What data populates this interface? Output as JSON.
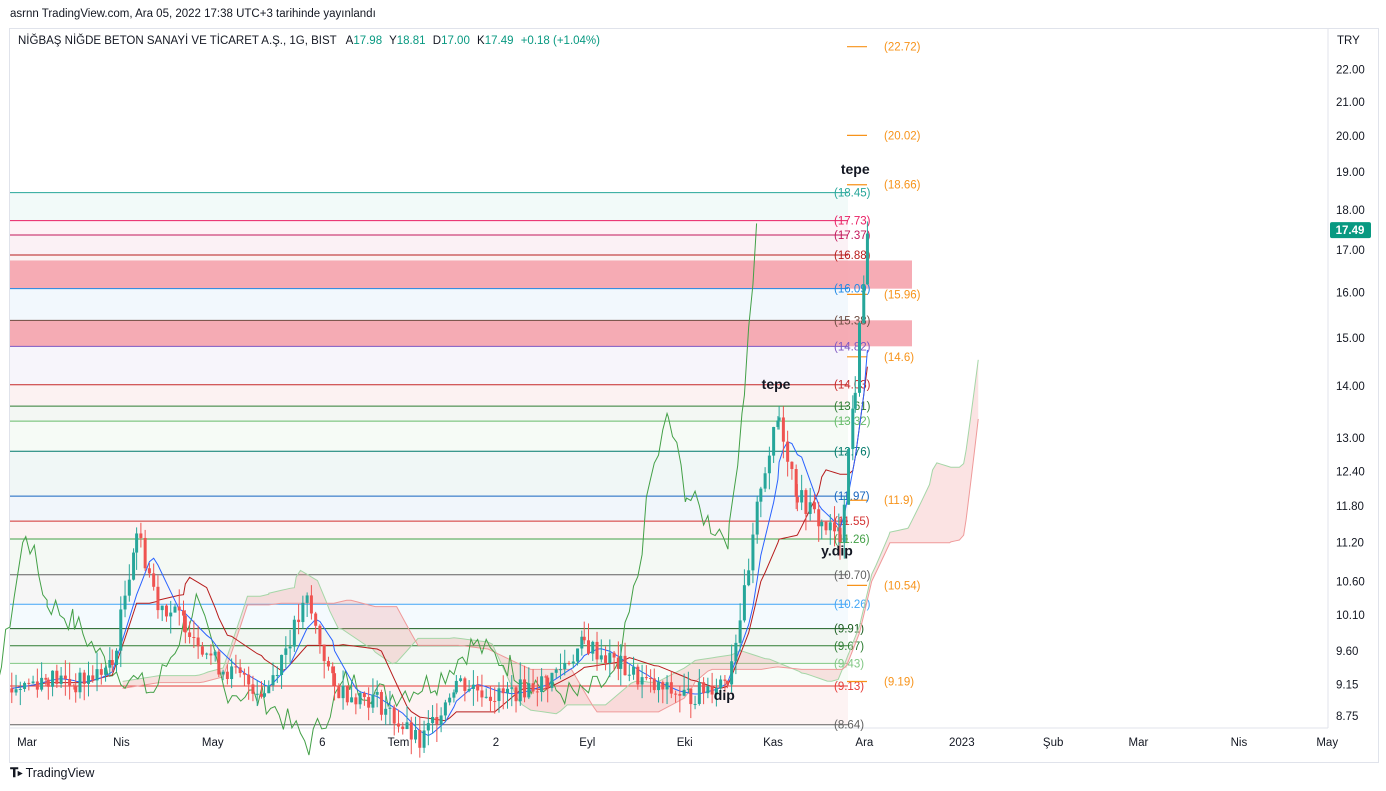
{
  "header": {
    "published_text": "asrnn TradingView.com, Ara 05, 2022 17:38 UTC+3 tarihinde yayınlandı"
  },
  "symbol": {
    "name": "NİĞBAŞ NİĞDE BETON SANAYİ VE TİCARET A.Ş., 1G, BIST",
    "open_label": "A",
    "open": "17.98",
    "high_label": "Y",
    "high": "18.81",
    "low_label": "D",
    "low": "17.00",
    "close_label": "K",
    "close": "17.49",
    "change": "+0.18 (+1.04%)"
  },
  "footer": {
    "brand": "TradingView",
    "logo": "tradingview-logo-icon"
  },
  "colors": {
    "up": "#26a69a",
    "down": "#ef5350",
    "tenkan": "#2962ff",
    "kijun": "#b71c1c",
    "lagging": "#43a047",
    "span_a": "#a5d6a7",
    "span_b": "#ef9a9a",
    "target_orange": "#f7931a",
    "zone_fill": "#f5a3ad",
    "price_badge": "#089981"
  },
  "chart_data": {
    "type": "candlestick",
    "currency": "TRY",
    "y_scale": "log",
    "ylim": [
      8.6,
      23.3
    ],
    "y_ticks": [
      8.75,
      9.15,
      9.6,
      10.1,
      10.6,
      11.2,
      11.8,
      12.4,
      13.0,
      14.0,
      15.0,
      16.0,
      17.0,
      18.0,
      19.0,
      20.0,
      21.0,
      22.0
    ],
    "x_labels": [
      {
        "label": "Mar",
        "date": "2022-03-01"
      },
      {
        "label": "Nis",
        "date": "2022-04-01"
      },
      {
        "label": "May",
        "date": "2022-05-01"
      },
      {
        "label": "6",
        "date": "2022-06-06"
      },
      {
        "label": "Tem",
        "date": "2022-07-01"
      },
      {
        "label": "2",
        "date": "2022-08-02"
      },
      {
        "label": "Eyl",
        "date": "2022-09-01"
      },
      {
        "label": "Eki",
        "date": "2022-10-03"
      },
      {
        "label": "Kas",
        "date": "2022-11-01"
      },
      {
        "label": "Ara",
        "date": "2022-12-01"
      },
      {
        "label": "2023",
        "date": "2023-01-02"
      },
      {
        "label": "Şub",
        "date": "2023-02-01"
      },
      {
        "label": "Mar",
        "date": "2023-03-01"
      },
      {
        "label": "Nis",
        "date": "2023-04-03"
      },
      {
        "label": "May",
        "date": "2023-05-02"
      }
    ],
    "last_price": "17.49",
    "levels": [
      {
        "value": 18.45,
        "label": "(18.45)",
        "color": "#26a69a"
      },
      {
        "value": 17.73,
        "label": "(17.73)",
        "color": "#e91e63"
      },
      {
        "value": 17.37,
        "label": "(17.37)",
        "color": "#c2185b"
      },
      {
        "value": 16.88,
        "label": "(16.88)",
        "color": "#b71c1c"
      },
      {
        "value": 16.09,
        "label": "(16.09)",
        "color": "#1e88e5"
      },
      {
        "value": 15.38,
        "label": "(15.38)",
        "color": "#6d4c41"
      },
      {
        "value": 14.82,
        "label": "(14.82)",
        "color": "#7e57c2"
      },
      {
        "value": 14.03,
        "label": "(14.03)",
        "color": "#c62828"
      },
      {
        "value": 13.61,
        "label": "(13.61)",
        "color": "#2e7d32"
      },
      {
        "value": 13.32,
        "label": "(13.32)",
        "color": "#66bb6a"
      },
      {
        "value": 12.76,
        "label": "(12.76)",
        "color": "#00796b"
      },
      {
        "value": 11.97,
        "label": "(11.97)",
        "color": "#1565c0"
      },
      {
        "value": 11.55,
        "label": "(11.55)",
        "color": "#d32f2f"
      },
      {
        "value": 11.26,
        "label": "(11.26)",
        "color": "#43a047"
      },
      {
        "value": 10.7,
        "label": "(10.70)",
        "color": "#616161"
      },
      {
        "value": 10.26,
        "label": "(10.26)",
        "color": "#42a5f5"
      },
      {
        "value": 9.91,
        "label": "(9.91)",
        "color": "#1b5e20"
      },
      {
        "value": 9.67,
        "label": "(9.67)",
        "color": "#2e7d32"
      },
      {
        "value": 9.43,
        "label": "(9.43)",
        "color": "#81c784"
      },
      {
        "value": 9.13,
        "label": "(9.13)",
        "color": "#e53935"
      },
      {
        "value": 8.64,
        "label": "(8.64)",
        "color": "#616161"
      }
    ],
    "targets": [
      {
        "value": 22.72,
        "label": "(22.72)"
      },
      {
        "value": 20.02,
        "label": "(20.02)"
      },
      {
        "value": 18.66,
        "label": "(18.66)"
      },
      {
        "value": 15.96,
        "label": "(15.96)"
      },
      {
        "value": 14.6,
        "label": "(14.6)"
      },
      {
        "value": 11.9,
        "label": "(11.9)"
      },
      {
        "value": 10.54,
        "label": "(10.54)"
      },
      {
        "value": 9.19,
        "label": "(9.19)"
      }
    ],
    "zones": [
      {
        "from": 16.09,
        "to": 16.75
      },
      {
        "from": 14.82,
        "to": 15.38
      }
    ],
    "annotations": [
      {
        "text": "tepe",
        "date": "2022-11-28",
        "price": 18.95
      },
      {
        "text": "tepe",
        "date": "2022-11-02",
        "price": 13.95
      },
      {
        "text": "y.dip",
        "date": "2022-11-22",
        "price": 11.0
      },
      {
        "text": "dip",
        "date": "2022-10-16",
        "price": 8.95
      }
    ],
    "close_path": [
      {
        "date": "2022-02-24",
        "price": 9.1
      },
      {
        "date": "2022-03-08",
        "price": 9.25
      },
      {
        "date": "2022-03-17",
        "price": 9.15
      },
      {
        "date": "2022-03-29",
        "price": 9.4
      },
      {
        "date": "2022-04-06",
        "price": 11.4
      },
      {
        "date": "2022-04-13",
        "price": 10.3
      },
      {
        "date": "2022-04-22",
        "price": 10.0
      },
      {
        "date": "2022-05-03",
        "price": 9.4
      },
      {
        "date": "2022-05-18",
        "price": 9.05
      },
      {
        "date": "2022-06-01",
        "price": 10.3
      },
      {
        "date": "2022-06-10",
        "price": 9.1
      },
      {
        "date": "2022-06-24",
        "price": 8.95
      },
      {
        "date": "2022-07-08",
        "price": 8.4
      },
      {
        "date": "2022-07-20",
        "price": 9.2
      },
      {
        "date": "2022-08-03",
        "price": 9.0
      },
      {
        "date": "2022-08-19",
        "price": 9.2
      },
      {
        "date": "2022-08-31",
        "price": 9.7
      },
      {
        "date": "2022-09-12",
        "price": 9.4
      },
      {
        "date": "2022-09-23",
        "price": 9.1
      },
      {
        "date": "2022-10-05",
        "price": 9.0
      },
      {
        "date": "2022-10-17",
        "price": 9.25
      },
      {
        "date": "2022-10-24",
        "price": 10.7
      },
      {
        "date": "2022-10-28",
        "price": 12.2
      },
      {
        "date": "2022-11-03",
        "price": 13.4
      },
      {
        "date": "2022-11-09",
        "price": 12.0
      },
      {
        "date": "2022-11-17",
        "price": 11.5
      },
      {
        "date": "2022-11-23",
        "price": 11.3
      },
      {
        "date": "2022-11-28",
        "price": 14.0
      },
      {
        "date": "2022-12-02",
        "price": 17.49
      }
    ]
  }
}
